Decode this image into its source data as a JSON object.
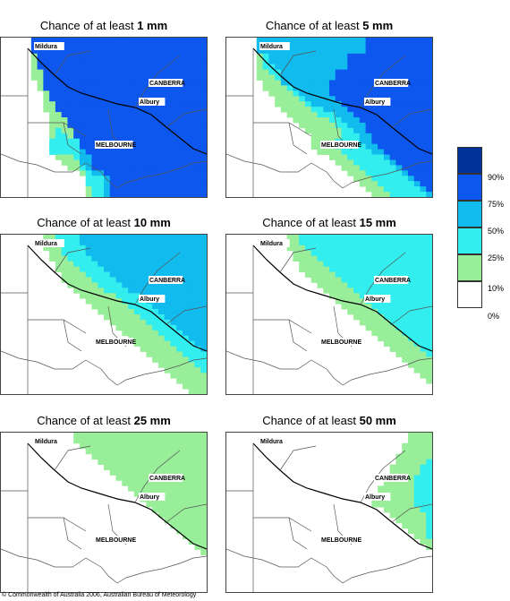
{
  "panels": [
    {
      "prefix": "Chance of at least ",
      "amount": "1 mm",
      "rows": [
        "0000066666666666666666666666666666",
        "0000066666666666666666666666666666",
        "0000066666666666666666666666666666",
        "0000036666666666666666666666666666",
        "0000036666666666666666666666666666",
        "0000036666666666666666666666666666",
        "0000033666666666666666666666666666",
        "0000033666666666666666666666666666",
        "0000003666666666666666666666666666",
        "0000003666666666666666666666666666",
        "0000000366666666666666666666666666",
        "0000000366666666666666666666666666",
        "0000000336666666666666666666666666",
        "0000000336666666666666666666666666",
        "0000000033666666666666666666666666",
        "0000000033366666666666666666666666",
        "0000000033366666666666666666666666",
        "0000000034336666666666666666666666",
        "0000000034436666666666666666666666",
        "0000000044444666666666666666666666",
        "0000000044444666666666666666666666",
        "0000000044444566666666666666666666",
        "0000000003334556666666666666666666",
        "0000000000333556666666666666666666",
        "0000000000033456666666666666666666",
        "0000000000000345566666666666666666",
        "0000000000000044456666666666666666",
        "0000000000000044456666666666666666",
        "0000000000000034456666666666666666",
        "0000000000000034456666666666666666"
      ]
    },
    {
      "prefix": "Chance of at least ",
      "amount": "5 mm",
      "rows": [
        "0000055555555555555555566666666666",
        "0000055555555555555555566666666666",
        "0000055555555555555555566666666666",
        "0000034555555555555566666666666666",
        "0000034555555555555566666666666666",
        "0000034455555555555566666666666666",
        "0000033445555555556666666666666666",
        "0000033345555555556666666666666666",
        "0000003335555555566666666666666666",
        "0000003333455555566666666666666666",
        "0000000333345555566666666666666666",
        "0000000033334555556666666666666666",
        "0000000033333455555666666666666666",
        "0000000003333344555566666666666666",
        "0000000000333334445556666666666666",
        "0000000000033333344555666666666666",
        "0000000000003333334455566666666666",
        "0000000000000333333445566666666666",
        "0000000000000033333444556666666666",
        "0000000000000033334444556666666666",
        "0000000000000033334444455666666666",
        "0000000000000003333444445566666666",
        "0000000000000000033344444456666666",
        "0000000000000000003334444445666666",
        "0000000000000000000333444444566666",
        "0000000000000000000033344444456666",
        "0000000000000000000003334444445666",
        "0000000000000000000000333444444566",
        "0000000000000000000000033344444456",
        "0000000000000000000000003334444445"
      ]
    },
    {
      "prefix": "Chance of at least ",
      "amount": "10 mm",
      "rows": [
        "0000000334444555555555555555555555",
        "0000000334444555555555555555555555",
        "0000000333444455555555555555555555",
        "0000000033444455555555555555555555",
        "0000000033344445555555555555555555",
        "0000000003334444555555555555555555",
        "0000000003333444455555555555555555",
        "0000000000333344445555555555555555",
        "0000000000333334444555555555555555",
        "0000000000033333444455555555555555",
        "0000000000003333344445555555555555",
        "0000000000000333333444455555555555",
        "0000000000000033333344445555555555",
        "0000000000000003333334444555555555",
        "0000000000000000333333444455555555",
        "0000000000000000033333344445555555",
        "0000000000000000003333334444555555",
        "0000000000000000000333333444455555",
        "0000000000000000000033333344445555",
        "0000000000000000000003333334444555",
        "0000000000000000000000333333444455",
        "0000000000000000000000033333344445",
        "0000000000000000000000003333334444",
        "0000000000000000000000000333333444",
        "0000000000000000000000000033333344",
        "0000000000000000000000000003333334",
        "0000000000000000000000000000333333",
        "0000000000000000000000000000033333",
        "0000000000000000000000000000003333",
        "0000000000000000000000000000000333"
      ]
    },
    {
      "prefix": "Chance of at least ",
      "amount": "15 mm",
      "rows": [
        "0000000000334444444444444444444444",
        "0000000000334444444444444444444444",
        "0000000000333444444444444444444444",
        "0000000000033344444444444444444444",
        "0000000000033334444444444444444444",
        "0000000000003333444444444444444444",
        "0000000000003333344444444444444444",
        "0000000000000333334444444444444444",
        "0000000000000033333444444444444444",
        "0000000000000003333344444444444444",
        "0000000000000000333334444444444444",
        "0000000000000000033333444444444444",
        "0000000000000000003333344444444444",
        "0000000000000000000333334444444444",
        "0000000000000000000033333444444444",
        "0000000000000000000003333344444444",
        "0000000000000000000000333334444444",
        "0000000000000000000000033333444444",
        "0000000000000000000000003333344444",
        "0000000000000000000000000333334444",
        "0000000000000000000000000033333444",
        "0000000000000000000000000003333344",
        "0000000000000000000000000000333334",
        "0000000000000000000000000000033333",
        "0000000000000000000000000000003333",
        "0000000000000000000000000000000333",
        "0000000000000000000000000000000033",
        "0000000000000000000000000000000003",
        "0000000000000000000000000000000000",
        "0000000000000000000000000000000000"
      ]
    },
    {
      "prefix": "Chance of at least ",
      "amount": "25 mm",
      "rows": [
        "0000000000003333333333333333333333",
        "0000000000003333333333333333333333",
        "0000000000000333333333333333333333",
        "0000000000000033333333333333333333",
        "0000000000000003333333333333333333",
        "0000000000000000333333333333333333",
        "0000000000000000033333333333333333",
        "0000000000000000003333333333333333",
        "0000000000000000000333333333333333",
        "0000000000000000000033333333333333",
        "0000000000000000000003333333333333",
        "0000000000000000000000333333333333",
        "0000000000000000000000033333333333",
        "0000000000000000000000003333333333",
        "0000000000000000000000000333333333",
        "0000000000000000000000000033333333",
        "0000000000000000000000000003333333",
        "0000000000000000000000000000333333",
        "0000000000000000000000000000033333",
        "0000000000000000000000000000003333",
        "0000000000000000000000000000000333",
        "0000000000000000000000000000000033",
        "0000000000000000000000000000000003",
        "0000000000000000000000000000000000",
        "0000000000000000000000000000000000",
        "0000000000000000000000000000000000",
        "0000000000000000000000000000000000",
        "0000000000000000000000000000000000",
        "0000000000000000000000000000000000",
        "0000000000000000000000000000000000"
      ]
    },
    {
      "prefix": "Chance of at least ",
      "amount": "50 mm",
      "rows": [
        "0000000000000000000000000000003333",
        "0000000000000000000000000000003333",
        "0000000000000000000000000000033333",
        "0000000000000000000000000000033333",
        "0000000000000000000000000000333333",
        "0000000000000000000000000000333334",
        "0000000000000000000000000003333344",
        "0000000000000000000000000003333344",
        "0000000000000000000000000033333444",
        "0000000000000000000000000033333444",
        "0000000000000000000000000333333444",
        "0000000000000000000000000333333444",
        "0000000000000000000000003333333444",
        "0000000000000000000000003333333444",
        "0000000000000000000000000033333344",
        "0000000000000000000000000003333334",
        "0000000000000000000000000000333334",
        "0000000000000000000000000000033334",
        "0000000000000000000000000000003334",
        "0000000000000000000000000000000334",
        "0000000000000000000000000000000033",
        "0000000000000000000000000000000003",
        "0000000000000000000000000000000000",
        "0000000000000000000000000000000000",
        "0000000000000000000000000000000000",
        "0000000000000000000000000000000000",
        "0000000000000000000000000000000000",
        "0000000000000000000000000000000000",
        "0000000000000000000000000000000000",
        "0000000000000000000000000000000000"
      ]
    }
  ],
  "cities": {
    "mildura": "Mildura",
    "canberra": "CANBERRA",
    "albury": "Albury",
    "melbourne": "MELBOURNE"
  },
  "legend": {
    "labels": [
      "90%",
      "75%",
      "50%",
      "25%",
      "10%",
      "0%"
    ],
    "colors": {
      "0": "#ffffff",
      "3": "#99ee99",
      "4": "#33eeee",
      "5": "#11bbee",
      "6": "#0d57ee",
      "7": "#003399"
    }
  },
  "copyright": "© Commonwealth of Australia 2006, Australian Bureau of Meteorology"
}
